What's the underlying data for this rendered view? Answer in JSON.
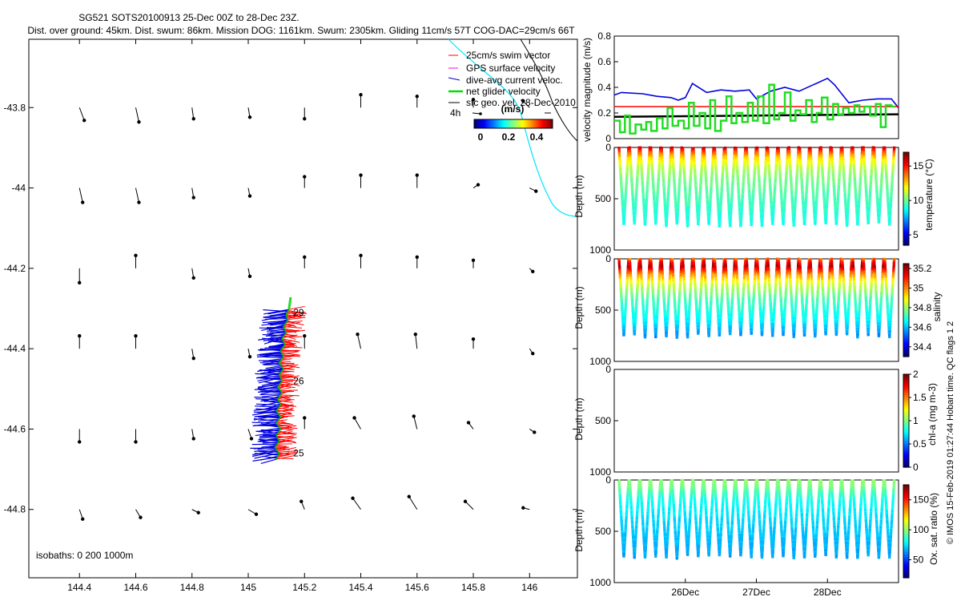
{
  "header": {
    "title_line1": "SG521 SOTS20100913 25-Dec 00Z to 28-Dec 23Z.",
    "title_line2": "Dist. over ground: 45km. Dist. swum: 86km. Mission DOG: 1161km. Swum: 2305km. Gliding 11cm/s 57T COG-DAC=29cm/s 66T"
  },
  "map": {
    "x_ticks": [
      "144.4",
      "144.6",
      "144.8",
      "145",
      "145.2",
      "145.4",
      "145.6",
      "145.8",
      "146"
    ],
    "x_tick_values": [
      144.4,
      144.6,
      144.8,
      145.0,
      145.2,
      145.4,
      145.6,
      145.8,
      146.0
    ],
    "y_ticks": [
      "-43.8",
      "-44",
      "-44.2",
      "-44.4",
      "-44.6",
      "-44.8"
    ],
    "y_tick_values": [
      -43.8,
      -44.0,
      -44.2,
      -44.4,
      -44.6,
      -44.8
    ],
    "xlim": [
      144.22,
      146.17
    ],
    "ylim": [
      -44.97,
      -43.63
    ],
    "legend": [
      {
        "label": "25cm/s swim vector",
        "color": "#ff0000"
      },
      {
        "label": "GPS surface velocity",
        "color": "#ff00ff"
      },
      {
        "label": "dive-avg current veloc.",
        "color": "#0000cc"
      },
      {
        "label": "net glider velocity",
        "color": "#00e000"
      },
      {
        "label": "sfc geo. vel. 28-Dec-2010",
        "color": "#000000"
      }
    ],
    "scale_label": "4h",
    "colorbar_title": "(m/s)",
    "colorbar_ticks": [
      "0",
      "0.2",
      "0.4"
    ],
    "isobaths_label": "isobaths: 0   200   1000m",
    "day_labels": [
      {
        "text": "29",
        "lon": 145.16,
        "lat": -44.31
      },
      {
        "text": "26",
        "lon": 145.16,
        "lat": -44.48
      },
      {
        "text": "25",
        "lon": 145.16,
        "lat": -44.66
      }
    ],
    "track": [
      [
        145.1,
        -44.675
      ],
      [
        145.11,
        -44.66
      ],
      [
        145.095,
        -44.645
      ],
      [
        145.11,
        -44.63
      ],
      [
        145.1,
        -44.615
      ],
      [
        145.115,
        -44.6
      ],
      [
        145.1,
        -44.585
      ],
      [
        145.115,
        -44.57
      ],
      [
        145.1,
        -44.555
      ],
      [
        145.115,
        -44.54
      ],
      [
        145.105,
        -44.525
      ],
      [
        145.12,
        -44.51
      ],
      [
        145.105,
        -44.495
      ],
      [
        145.12,
        -44.48
      ],
      [
        145.11,
        -44.465
      ],
      [
        145.125,
        -44.45
      ],
      [
        145.11,
        -44.435
      ],
      [
        145.125,
        -44.42
      ],
      [
        145.115,
        -44.405
      ],
      [
        145.13,
        -44.39
      ],
      [
        145.12,
        -44.375
      ],
      [
        145.135,
        -44.36
      ],
      [
        145.125,
        -44.345
      ],
      [
        145.14,
        -44.33
      ],
      [
        145.135,
        -44.315
      ],
      [
        145.145,
        -44.3
      ]
    ],
    "geo_vectors": [
      {
        "lon": 144.4,
        "lat": -43.8,
        "u": 0.03,
        "v": -0.08
      },
      {
        "lon": 144.6,
        "lat": -43.8,
        "u": 0.02,
        "v": -0.09
      },
      {
        "lon": 144.8,
        "lat": -43.8,
        "u": 0.01,
        "v": -0.07
      },
      {
        "lon": 145.0,
        "lat": -43.8,
        "u": 0.01,
        "v": -0.06
      },
      {
        "lon": 145.2,
        "lat": -43.8,
        "u": 0.0,
        "v": -0.07
      },
      {
        "lon": 145.4,
        "lat": -43.8,
        "u": 0.0,
        "v": 0.08
      },
      {
        "lon": 145.6,
        "lat": -43.8,
        "u": 0.0,
        "v": 0.07
      },
      {
        "lon": 145.8,
        "lat": -43.8,
        "u": 0.0,
        "v": 0.05
      },
      {
        "lon": 146.0,
        "lat": -43.8,
        "u": -0.04,
        "v": 0.04
      },
      {
        "lon": 144.4,
        "lat": -44.0,
        "u": 0.02,
        "v": -0.09
      },
      {
        "lon": 144.6,
        "lat": -44.0,
        "u": 0.02,
        "v": -0.09
      },
      {
        "lon": 144.8,
        "lat": -44.0,
        "u": 0.01,
        "v": -0.06
      },
      {
        "lon": 145.0,
        "lat": -44.0,
        "u": 0.01,
        "v": -0.05
      },
      {
        "lon": 145.2,
        "lat": -44.0,
        "u": 0.0,
        "v": 0.07
      },
      {
        "lon": 145.4,
        "lat": -44.0,
        "u": 0.0,
        "v": 0.08
      },
      {
        "lon": 145.6,
        "lat": -44.0,
        "u": 0.0,
        "v": 0.08
      },
      {
        "lon": 145.8,
        "lat": -44.0,
        "u": 0.03,
        "v": 0.02
      },
      {
        "lon": 146.0,
        "lat": -44.0,
        "u": 0.04,
        "v": -0.02
      },
      {
        "lon": 144.4,
        "lat": -44.2,
        "u": 0.0,
        "v": -0.09
      },
      {
        "lon": 144.6,
        "lat": -44.2,
        "u": 0.0,
        "v": 0.08
      },
      {
        "lon": 144.8,
        "lat": -44.2,
        "u": 0.01,
        "v": -0.06
      },
      {
        "lon": 145.0,
        "lat": -44.2,
        "u": 0.01,
        "v": -0.05
      },
      {
        "lon": 145.2,
        "lat": -44.2,
        "u": 0.0,
        "v": 0.07
      },
      {
        "lon": 145.4,
        "lat": -44.2,
        "u": 0.0,
        "v": 0.08
      },
      {
        "lon": 145.6,
        "lat": -44.2,
        "u": 0.0,
        "v": 0.07
      },
      {
        "lon": 145.8,
        "lat": -44.2,
        "u": 0.0,
        "v": 0.05
      },
      {
        "lon": 146.0,
        "lat": -44.2,
        "u": 0.02,
        "v": -0.02
      },
      {
        "lon": 144.4,
        "lat": -44.4,
        "u": 0.0,
        "v": 0.08
      },
      {
        "lon": 144.6,
        "lat": -44.4,
        "u": 0.0,
        "v": 0.08
      },
      {
        "lon": 144.8,
        "lat": -44.4,
        "u": 0.01,
        "v": -0.06
      },
      {
        "lon": 145.0,
        "lat": -44.4,
        "u": 0.01,
        "v": -0.05
      },
      {
        "lon": 145.2,
        "lat": -44.4,
        "u": 0.0,
        "v": 0.08
      },
      {
        "lon": 145.4,
        "lat": -44.4,
        "u": -0.02,
        "v": 0.09
      },
      {
        "lon": 145.6,
        "lat": -44.4,
        "u": -0.01,
        "v": 0.09
      },
      {
        "lon": 145.8,
        "lat": -44.4,
        "u": 0.0,
        "v": 0.06
      },
      {
        "lon": 146.0,
        "lat": -44.4,
        "u": 0.02,
        "v": -0.03
      },
      {
        "lon": 144.4,
        "lat": -44.6,
        "u": 0.0,
        "v": -0.08
      },
      {
        "lon": 144.6,
        "lat": -44.6,
        "u": 0.0,
        "v": -0.08
      },
      {
        "lon": 144.8,
        "lat": -44.6,
        "u": 0.01,
        "v": -0.06
      },
      {
        "lon": 145.0,
        "lat": -44.6,
        "u": 0.02,
        "v": -0.06
      },
      {
        "lon": 145.2,
        "lat": -44.6,
        "u": 0.0,
        "v": 0.07
      },
      {
        "lon": 145.4,
        "lat": -44.6,
        "u": -0.04,
        "v": 0.07
      },
      {
        "lon": 145.6,
        "lat": -44.6,
        "u": -0.02,
        "v": 0.08
      },
      {
        "lon": 145.8,
        "lat": -44.6,
        "u": -0.03,
        "v": 0.04
      },
      {
        "lon": 146.0,
        "lat": -44.6,
        "u": 0.03,
        "v": -0.02
      },
      {
        "lon": 144.4,
        "lat": -44.8,
        "u": 0.02,
        "v": -0.06
      },
      {
        "lon": 144.6,
        "lat": -44.8,
        "u": 0.03,
        "v": -0.05
      },
      {
        "lon": 144.8,
        "lat": -44.8,
        "u": 0.04,
        "v": -0.02
      },
      {
        "lon": 145.0,
        "lat": -44.8,
        "u": 0.05,
        "v": -0.03
      },
      {
        "lon": 145.2,
        "lat": -44.8,
        "u": -0.02,
        "v": 0.05
      },
      {
        "lon": 145.4,
        "lat": -44.8,
        "u": -0.05,
        "v": 0.07
      },
      {
        "lon": 145.6,
        "lat": -44.8,
        "u": -0.05,
        "v": 0.08
      },
      {
        "lon": 145.8,
        "lat": -44.8,
        "u": -0.05,
        "v": 0.05
      },
      {
        "lon": 146.0,
        "lat": -44.8,
        "u": -0.04,
        "v": 0.01
      }
    ]
  },
  "chart_data": [
    {
      "type": "line",
      "ylabel": "velocity magnitude (m/s)",
      "ylim": [
        0,
        0.8
      ],
      "yticks": [
        "0",
        "0.2",
        "0.4",
        "0.6",
        "0.8"
      ],
      "ytick_values": [
        0,
        0.2,
        0.4,
        0.6,
        0.8
      ],
      "xlim": [
        25,
        29
      ],
      "series": [
        {
          "name": "dive-avg current",
          "color": "#0000dd",
          "x": [
            25,
            25.1,
            25.4,
            25.6,
            25.8,
            25.9,
            26.0,
            26.1,
            26.3,
            26.5,
            26.7,
            26.9,
            27.0,
            27.2,
            27.4,
            27.6,
            27.8,
            28.0,
            28.1,
            28.3,
            28.5,
            28.7,
            28.9,
            29.0
          ],
          "y": [
            0.34,
            0.36,
            0.35,
            0.33,
            0.32,
            0.3,
            0.32,
            0.43,
            0.36,
            0.38,
            0.37,
            0.38,
            0.31,
            0.37,
            0.4,
            0.37,
            0.42,
            0.47,
            0.42,
            0.28,
            0.3,
            0.31,
            0.31,
            0.24
          ]
        },
        {
          "name": "25cm/s swim",
          "color": "#ff0000",
          "x": [
            25,
            29
          ],
          "y": [
            0.25,
            0.25
          ]
        },
        {
          "name": "surface geostrophic",
          "color": "#000000",
          "x": [
            25,
            29
          ],
          "y": [
            0.17,
            0.19
          ]
        },
        {
          "name": "net glider velocity",
          "color": "#22dd22",
          "x": [
            25,
            25.08,
            25.08,
            25.15,
            25.15,
            25.22,
            25.22,
            25.3,
            25.3,
            25.38,
            25.38,
            25.45,
            25.45,
            25.52,
            25.52,
            25.6,
            25.6,
            25.68,
            25.68,
            25.75,
            25.75,
            25.82,
            25.82,
            25.9,
            25.9,
            25.98,
            25.98,
            26.05,
            26.05,
            26.12,
            26.12,
            26.2,
            26.2,
            26.28,
            26.28,
            26.35,
            26.35,
            26.42,
            26.42,
            26.5,
            26.5,
            26.58,
            26.58,
            26.65,
            26.65,
            26.72,
            26.72,
            26.8,
            26.8,
            26.88,
            26.88,
            26.95,
            26.95,
            27.02,
            27.02,
            27.1,
            27.1,
            27.18,
            27.18,
            27.25,
            27.25,
            27.32,
            27.32,
            27.4,
            27.4,
            27.48,
            27.48,
            27.55,
            27.55,
            27.62,
            27.62,
            27.7,
            27.7,
            27.78,
            27.78,
            27.85,
            27.85,
            27.92,
            27.92,
            28.0,
            28.0,
            28.08,
            28.08,
            28.15,
            28.15,
            28.22,
            28.22,
            28.3,
            28.3,
            28.38,
            28.38,
            28.45,
            28.45,
            28.52,
            28.52,
            28.6,
            28.6,
            28.68,
            28.68,
            28.75,
            28.75,
            28.82,
            28.82,
            28.9,
            28.9,
            28.95
          ],
          "y": [
            0.14,
            0.14,
            0.05,
            0.05,
            0.18,
            0.18,
            0.04,
            0.04,
            0.11,
            0.11,
            0.07,
            0.07,
            0.13,
            0.13,
            0.06,
            0.06,
            0.16,
            0.16,
            0.08,
            0.08,
            0.24,
            0.24,
            0.1,
            0.1,
            0.14,
            0.14,
            0.08,
            0.08,
            0.28,
            0.28,
            0.1,
            0.1,
            0.2,
            0.2,
            0.08,
            0.08,
            0.3,
            0.3,
            0.06,
            0.06,
            0.14,
            0.14,
            0.33,
            0.33,
            0.12,
            0.12,
            0.2,
            0.2,
            0.13,
            0.13,
            0.28,
            0.28,
            0.14,
            0.14,
            0.33,
            0.33,
            0.12,
            0.12,
            0.42,
            0.42,
            0.15,
            0.15,
            0.2,
            0.2,
            0.36,
            0.36,
            0.14,
            0.14,
            0.22,
            0.22,
            0.19,
            0.19,
            0.3,
            0.3,
            0.13,
            0.13,
            0.2,
            0.2,
            0.32,
            0.32,
            0.15,
            0.15,
            0.27,
            0.27,
            0.19,
            0.19,
            0.24,
            0.24,
            0.2,
            0.2,
            0.26,
            0.26,
            0.21,
            0.21,
            0.25,
            0.25,
            0.18,
            0.18,
            0.27,
            0.27,
            0.09,
            0.09,
            0.26,
            0.26,
            0.25,
            0.25
          ]
        }
      ]
    },
    {
      "type": "scatter",
      "ylabel": "Depth (m)",
      "ylim": [
        1000,
        0
      ],
      "yticks": [
        "0",
        "500",
        "1000"
      ],
      "ytick_values": [
        0,
        500,
        1000
      ],
      "colorbar_label": "temperature (°C)",
      "colorbar_ticks": [
        "5",
        "10",
        "15"
      ],
      "colorbar_tick_values": [
        5,
        10,
        15
      ],
      "clim": [
        3.5,
        17
      ],
      "dives": 26,
      "max_depth": 750,
      "profile": {
        "depth": [
          0,
          50,
          100,
          200,
          300,
          500,
          750
        ],
        "value": [
          16,
          14,
          12.5,
          11,
          10.2,
          9.5,
          8.8
        ]
      }
    },
    {
      "type": "scatter",
      "ylabel": "Depth (m)",
      "ylim": [
        1000,
        0
      ],
      "yticks": [
        "0",
        "500",
        "1000"
      ],
      "ytick_values": [
        0,
        500,
        1000
      ],
      "colorbar_label": "salinity",
      "colorbar_ticks": [
        "34.4",
        "34.6",
        "34.8",
        "35",
        "35.2"
      ],
      "colorbar_tick_values": [
        34.4,
        34.6,
        34.8,
        35.0,
        35.2
      ],
      "clim": [
        34.3,
        35.25
      ],
      "dives": 26,
      "max_depth": 750,
      "profile": {
        "depth": [
          0,
          30,
          80,
          150,
          250,
          400,
          600,
          750
        ],
        "value": [
          35.0,
          35.1,
          35.18,
          35.0,
          34.85,
          34.72,
          34.65,
          34.55
        ]
      }
    },
    {
      "type": "scatter",
      "ylabel": "Depth (m)",
      "ylim": [
        1000,
        0
      ],
      "yticks": [
        "0",
        "500",
        "1000"
      ],
      "ytick_values": [
        0,
        500,
        1000
      ],
      "colorbar_label": "chl-a (mg m-3)",
      "colorbar_ticks": [
        "0",
        "0.5",
        "1",
        "1.5",
        "2"
      ],
      "colorbar_tick_values": [
        0,
        0.5,
        1,
        1.5,
        2
      ],
      "clim": [
        0,
        2
      ],
      "dives": 0,
      "max_depth": 750
    },
    {
      "type": "scatter",
      "ylabel": "Depth (m)",
      "ylim": [
        1000,
        0
      ],
      "yticks": [
        "0",
        "500",
        "1000"
      ],
      "ytick_values": [
        0,
        500,
        1000
      ],
      "colorbar_label": "Ox. sat. ratio (%)",
      "colorbar_ticks": [
        "50",
        "100",
        "150"
      ],
      "colorbar_tick_values": [
        50,
        100,
        150
      ],
      "clim": [
        20,
        175
      ],
      "dives": 26,
      "max_depth": 750,
      "profile": {
        "depth": [
          0,
          50,
          100,
          200,
          400,
          600,
          750
        ],
        "value": [
          100,
          98,
          92,
          80,
          72,
          68,
          64
        ]
      },
      "xticks": [
        "26Dec",
        "27Dec",
        "28Dec"
      ],
      "xtick_values": [
        26,
        27,
        28
      ],
      "xlim": [
        25,
        29
      ]
    }
  ],
  "footer": {
    "credit": "© IMOS 15-Feb-2019 01:27:44 Hobart time. QC flags 1  2"
  }
}
